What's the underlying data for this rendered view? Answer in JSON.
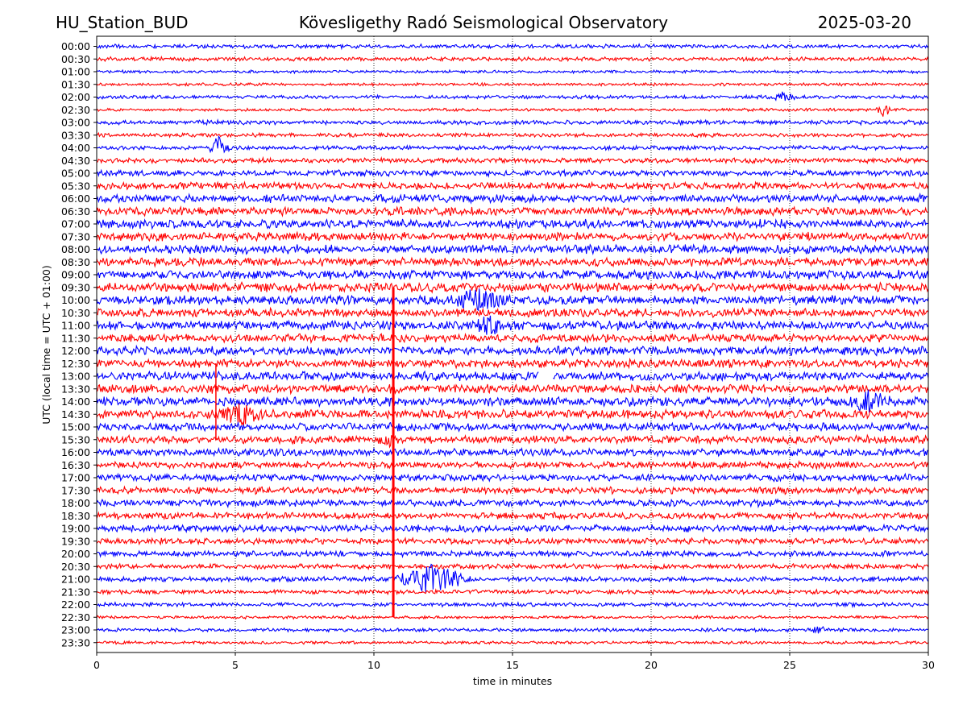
{
  "header": {
    "left": "HU_Station_BUD",
    "center": "Kövesligethy Radó Seismological Observatory",
    "right": "2025-03-20"
  },
  "chart_data": {
    "type": "line",
    "chart_kind": "helicorder",
    "title": "Kövesligethy Radó Seismological Observatory",
    "station": "HU_Station_BUD",
    "date": "2025-03-20",
    "xlabel": "time in minutes",
    "ylabel": "UTC (local time = UTC + 01:00)",
    "xlim": [
      0,
      30
    ],
    "x_ticks": [
      0,
      5,
      10,
      15,
      20,
      25,
      30
    ],
    "grid": "vertical dotted at x ticks",
    "trace_interval_minutes": 30,
    "row_labels": [
      "00:00",
      "00:30",
      "01:00",
      "01:30",
      "02:00",
      "02:30",
      "03:00",
      "03:30",
      "04:00",
      "04:30",
      "05:00",
      "05:30",
      "06:00",
      "06:30",
      "07:00",
      "07:30",
      "08:00",
      "08:30",
      "09:00",
      "09:30",
      "10:00",
      "10:30",
      "11:00",
      "11:30",
      "12:00",
      "12:30",
      "13:00",
      "13:30",
      "14:00",
      "14:30",
      "15:00",
      "15:30",
      "16:00",
      "16:30",
      "17:00",
      "17:30",
      "18:00",
      "18:30",
      "19:00",
      "19:30",
      "20:00",
      "20:30",
      "21:00",
      "21:30",
      "22:00",
      "22:30",
      "23:00",
      "23:30"
    ],
    "trace_colors": [
      "#0000ff",
      "#ff0000"
    ],
    "noise_amplitude": [
      0.2,
      0.2,
      0.15,
      0.15,
      0.18,
      0.15,
      0.22,
      0.2,
      0.22,
      0.25,
      0.3,
      0.35,
      0.4,
      0.42,
      0.45,
      0.42,
      0.45,
      0.42,
      0.45,
      0.45,
      0.45,
      0.42,
      0.45,
      0.42,
      0.45,
      0.42,
      0.45,
      0.45,
      0.45,
      0.45,
      0.4,
      0.4,
      0.38,
      0.35,
      0.35,
      0.35,
      0.35,
      0.33,
      0.35,
      0.3,
      0.28,
      0.25,
      0.25,
      0.22,
      0.2,
      0.15,
      0.18,
      0.15
    ],
    "events": [
      {
        "row": "04:00",
        "minute": 4.4,
        "amplitude": 1.3,
        "duration": 0.4
      },
      {
        "row": "02:00",
        "minute": 24.8,
        "amplitude": 0.7,
        "duration": 0.5
      },
      {
        "row": "02:30",
        "minute": 28.4,
        "amplitude": 0.8,
        "duration": 0.3
      },
      {
        "row": "10:00",
        "minute": 13.7,
        "amplitude": 1.1,
        "duration": 1.2
      },
      {
        "row": "11:00",
        "minute": 14.1,
        "amplitude": 0.9,
        "duration": 0.6
      },
      {
        "row": "14:00",
        "minute": 27.8,
        "amplitude": 1.2,
        "duration": 0.9
      },
      {
        "row": "14:30",
        "minute": 5.2,
        "amplitude": 1.2,
        "duration": 1.0
      },
      {
        "row": "15:30",
        "minute": 10.5,
        "amplitude": 0.9,
        "duration": 0.4
      },
      {
        "row": "21:00",
        "minute": 12.1,
        "amplitude": 1.6,
        "duration": 1.5
      },
      {
        "row": "23:00",
        "minute": 26.0,
        "amplitude": 0.9,
        "duration": 0.3
      }
    ],
    "vertical_spikes": [
      {
        "minute": 10.7,
        "from_row": "09:30",
        "to_row": "22:30"
      },
      {
        "minute": 4.3,
        "from_row": "12:30",
        "to_row": "15:30"
      }
    ],
    "gaps": [
      {
        "row": "13:00",
        "from_minute": 15.95,
        "to_minute": 16.45
      }
    ]
  }
}
